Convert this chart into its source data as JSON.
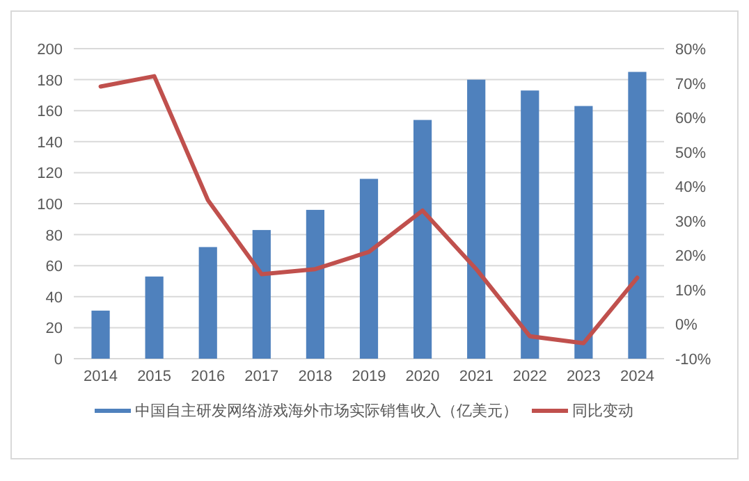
{
  "chart_data": {
    "type": "bar",
    "categories": [
      "2014",
      "2015",
      "2016",
      "2017",
      "2018",
      "2019",
      "2020",
      "2021",
      "2022",
      "2023",
      "2024"
    ],
    "series": [
      {
        "name": "中国自主研发网络游戏海外市场实际销售收入（亿美元）",
        "color": "#4f81bd",
        "values": [
          31,
          53,
          72,
          83,
          96,
          116,
          154,
          180,
          173,
          163,
          185
        ]
      },
      {
        "name": "同比变动",
        "type": "line",
        "axis": "y2",
        "color": "#c0504d",
        "values": [
          69,
          72,
          36,
          14.5,
          16,
          21,
          33,
          16,
          -3.5,
          -5.5,
          13.5
        ]
      }
    ],
    "ylim": [
      0,
      200
    ],
    "yticks": [
      0,
      20,
      40,
      60,
      80,
      100,
      120,
      140,
      160,
      180,
      200
    ],
    "y2lim": [
      -10,
      80
    ],
    "y2ticks": [
      {
        "value": -10,
        "label": "-10%"
      },
      {
        "value": 0,
        "label": "0%"
      },
      {
        "value": 10,
        "label": "10%"
      },
      {
        "value": 20,
        "label": "20%"
      },
      {
        "value": 30,
        "label": "30%"
      },
      {
        "value": 40,
        "label": "40%"
      },
      {
        "value": 50,
        "label": "50%"
      },
      {
        "value": 60,
        "label": "60%"
      },
      {
        "value": 70,
        "label": "70%"
      },
      {
        "value": 80,
        "label": "80%"
      }
    ],
    "grid": "y",
    "legend": "bottom",
    "marker": "none",
    "line_style": "solid"
  }
}
